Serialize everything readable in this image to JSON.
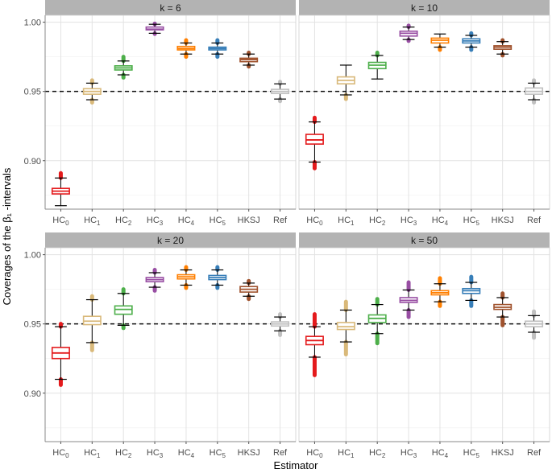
{
  "chart_data": {
    "type": "boxplot",
    "ylabel": "Coverages of the β₁ -intervals",
    "xlabel": "Estimator",
    "categories": [
      {
        "base": "HC",
        "sub": "0"
      },
      {
        "base": "HC",
        "sub": "1"
      },
      {
        "base": "HC",
        "sub": "2"
      },
      {
        "base": "HC",
        "sub": "3"
      },
      {
        "base": "HC",
        "sub": "4"
      },
      {
        "base": "HC",
        "sub": "5"
      },
      {
        "base": "HKSJ",
        "sub": ""
      },
      {
        "base": "Ref",
        "sub": ""
      }
    ],
    "colors": [
      "#e41a1c",
      "#d9b97a",
      "#4daf4a",
      "#984ea3",
      "#ff7f00",
      "#377eb8",
      "#a0522d",
      "#c0c0c0"
    ],
    "ylim": [
      0.865,
      1.005
    ],
    "yticks": [
      0.9,
      0.95,
      1.0
    ],
    "ytick_labels": [
      "0.90",
      "0.95",
      "1.00"
    ],
    "reference_line": 0.95,
    "reference_line_style": "dashed",
    "grid": true,
    "panels": [
      {
        "label": "k = 6",
        "boxes": [
          {
            "q1": 0.876,
            "median": 0.878,
            "q3": 0.88,
            "wlo": 0.8675,
            "whi": 0.8875,
            "out_lo": null,
            "out_hi": 0.891
          },
          {
            "q1": 0.948,
            "median": 0.95,
            "q3": 0.952,
            "wlo": 0.944,
            "whi": 0.956,
            "out_lo": 0.942,
            "out_hi": 0.958
          },
          {
            "q1": 0.9655,
            "median": 0.967,
            "q3": 0.9685,
            "wlo": 0.962,
            "whi": 0.972,
            "out_lo": 0.96,
            "out_hi": 0.975
          },
          {
            "q1": 0.9945,
            "median": 0.995,
            "q3": 0.9965,
            "wlo": 0.992,
            "whi": 0.9985,
            "out_lo": 0.9915,
            "out_hi": 0.999
          },
          {
            "q1": 0.98,
            "median": 0.981,
            "q3": 0.9825,
            "wlo": 0.977,
            "whi": 0.985,
            "out_lo": 0.975,
            "out_hi": 0.987
          },
          {
            "q1": 0.98,
            "median": 0.981,
            "q3": 0.982,
            "wlo": 0.977,
            "whi": 0.985,
            "out_lo": 0.975,
            "out_hi": 0.987
          },
          {
            "q1": 0.9715,
            "median": 0.973,
            "q3": 0.974,
            "wlo": 0.969,
            "whi": 0.977,
            "out_lo": 0.968,
            "out_hi": 0.978
          },
          {
            "q1": 0.9485,
            "median": 0.95,
            "q3": 0.9515,
            "wlo": 0.9445,
            "whi": 0.9555,
            "out_lo": 0.943,
            "out_hi": 0.957
          }
        ]
      },
      {
        "label": "k = 10",
        "boxes": [
          {
            "q1": 0.912,
            "median": 0.915,
            "q3": 0.919,
            "wlo": 0.899,
            "whi": 0.928,
            "out_lo": 0.8945,
            "out_hi": 0.931
          },
          {
            "q1": 0.9555,
            "median": 0.958,
            "q3": 0.9605,
            "wlo": 0.9475,
            "whi": 0.969,
            "out_lo": 0.9445,
            "out_hi": null
          },
          {
            "q1": 0.9665,
            "median": 0.969,
            "q3": 0.971,
            "wlo": 0.959,
            "whi": 0.976,
            "out_lo": null,
            "out_hi": 0.978
          },
          {
            "q1": 0.99,
            "median": 0.992,
            "q3": 0.9935,
            "wlo": 0.9875,
            "whi": 0.9965,
            "out_lo": 0.9865,
            "out_hi": 0.9975
          },
          {
            "q1": 0.985,
            "median": 0.987,
            "q3": 0.9885,
            "wlo": 0.982,
            "whi": 0.9915,
            "out_lo": 0.98,
            "out_hi": null
          },
          {
            "q1": 0.985,
            "median": 0.9865,
            "q3": 0.988,
            "wlo": 0.982,
            "whi": 0.9905,
            "out_lo": 0.98,
            "out_hi": 0.992
          },
          {
            "q1": 0.9805,
            "median": 0.982,
            "q3": 0.983,
            "wlo": 0.977,
            "whi": 0.986,
            "out_lo": 0.976,
            "out_hi": 0.987
          },
          {
            "q1": 0.948,
            "median": 0.95,
            "q3": 0.9525,
            "wlo": 0.944,
            "whi": 0.956,
            "out_lo": 0.942,
            "out_hi": 0.958
          }
        ]
      },
      {
        "label": "k = 20",
        "boxes": [
          {
            "q1": 0.925,
            "median": 0.929,
            "q3": 0.933,
            "wlo": 0.91,
            "whi": 0.948,
            "out_lo": 0.906,
            "out_hi": 0.95
          },
          {
            "q1": 0.9495,
            "median": 0.952,
            "q3": 0.9555,
            "wlo": 0.9365,
            "whi": 0.9675,
            "out_lo": 0.931,
            "out_hi": 0.97
          },
          {
            "q1": 0.957,
            "median": 0.9605,
            "q3": 0.963,
            "wlo": 0.949,
            "whi": 0.972,
            "out_lo": 0.947,
            "out_hi": 0.975
          },
          {
            "q1": 0.9805,
            "median": 0.982,
            "q3": 0.9835,
            "wlo": 0.9765,
            "whi": 0.987,
            "out_lo": 0.974,
            "out_hi": 0.989
          },
          {
            "q1": 0.9825,
            "median": 0.984,
            "q3": 0.9855,
            "wlo": 0.978,
            "whi": 0.989,
            "out_lo": 0.976,
            "out_hi": 0.991
          },
          {
            "q1": 0.982,
            "median": 0.9835,
            "q3": 0.985,
            "wlo": 0.978,
            "whi": 0.989,
            "out_lo": 0.976,
            "out_hi": 0.991
          },
          {
            "q1": 0.973,
            "median": 0.975,
            "q3": 0.977,
            "wlo": 0.97,
            "whi": 0.9795,
            "out_lo": 0.968,
            "out_hi": 0.981
          },
          {
            "q1": 0.9485,
            "median": 0.95,
            "q3": 0.9515,
            "wlo": 0.945,
            "whi": 0.955,
            "out_lo": 0.942,
            "out_hi": 0.957
          }
        ]
      },
      {
        "label": "k = 50",
        "boxes": [
          {
            "q1": 0.935,
            "median": 0.938,
            "q3": 0.941,
            "wlo": 0.926,
            "whi": 0.948,
            "out_lo": 0.913,
            "out_hi": 0.957
          },
          {
            "q1": 0.946,
            "median": 0.948,
            "q3": 0.951,
            "wlo": 0.937,
            "whi": 0.96,
            "out_lo": 0.928,
            "out_hi": 0.966
          },
          {
            "q1": 0.951,
            "median": 0.954,
            "q3": 0.9565,
            "wlo": 0.943,
            "whi": 0.964,
            "out_lo": 0.936,
            "out_hi": 0.968
          },
          {
            "q1": 0.9655,
            "median": 0.967,
            "q3": 0.969,
            "wlo": 0.96,
            "whi": 0.9745,
            "out_lo": 0.955,
            "out_hi": 0.98
          },
          {
            "q1": 0.971,
            "median": 0.9725,
            "q3": 0.974,
            "wlo": 0.966,
            "whi": 0.979,
            "out_lo": 0.963,
            "out_hi": 0.983
          },
          {
            "q1": 0.972,
            "median": 0.974,
            "q3": 0.9755,
            "wlo": 0.967,
            "whi": 0.98,
            "out_lo": 0.963,
            "out_hi": 0.984
          },
          {
            "q1": 0.9605,
            "median": 0.962,
            "q3": 0.964,
            "wlo": 0.955,
            "whi": 0.969,
            "out_lo": 0.949,
            "out_hi": 0.972
          },
          {
            "q1": 0.948,
            "median": 0.95,
            "q3": 0.952,
            "wlo": 0.944,
            "whi": 0.956,
            "out_lo": 0.94,
            "out_hi": 0.959
          }
        ]
      }
    ]
  }
}
